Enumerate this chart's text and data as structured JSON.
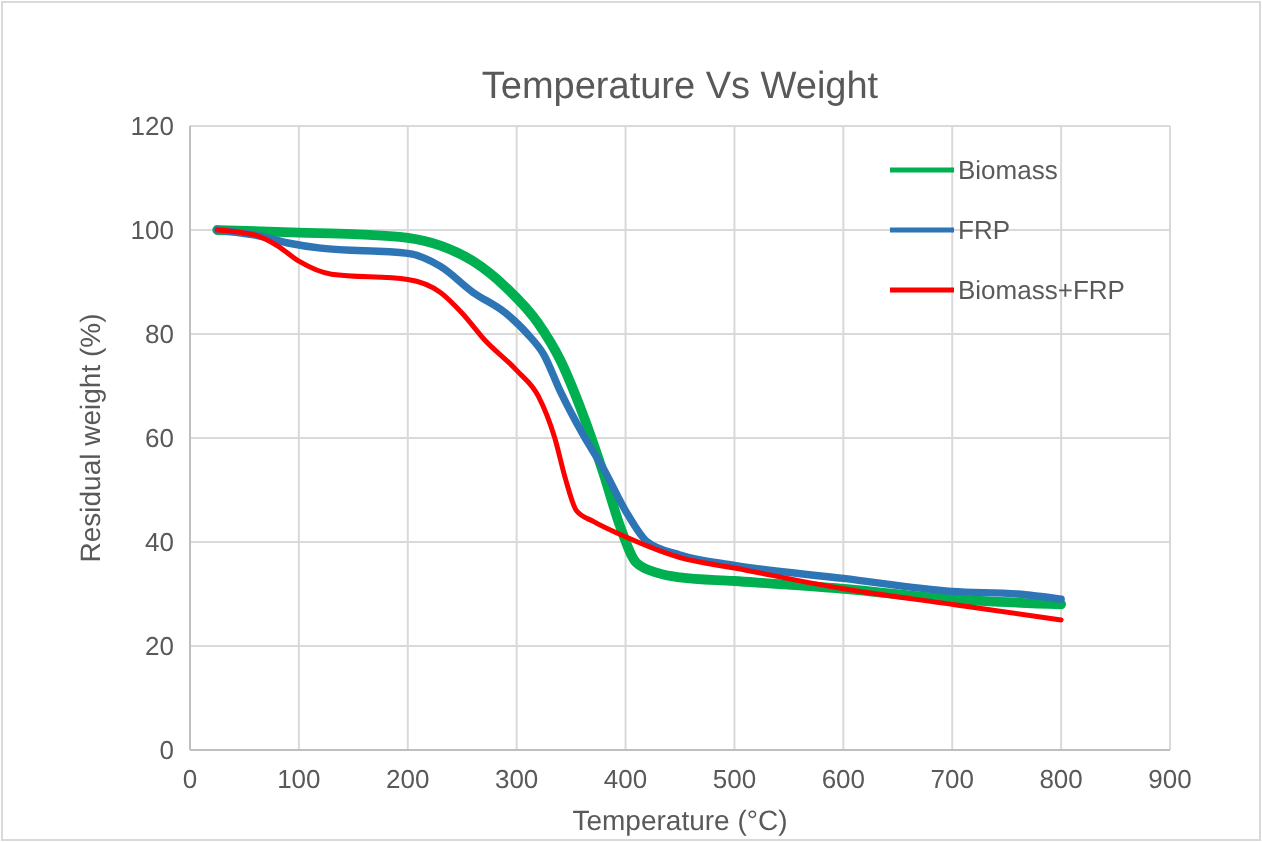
{
  "chart_data": {
    "type": "line",
    "title": "Temperature Vs Weight",
    "xlabel": "Temperature (°C)",
    "ylabel": "Residual weight (%)",
    "xlim": [
      0,
      900
    ],
    "xticks": [
      0,
      100,
      200,
      300,
      400,
      500,
      600,
      700,
      800,
      900
    ],
    "ylim": [
      0,
      120
    ],
    "yticks": [
      0,
      20,
      40,
      60,
      80,
      100,
      120
    ],
    "grid": true,
    "legend": "top right",
    "marker": "none",
    "line_style": "solid",
    "series": [
      {
        "name": "Biomass",
        "color": "#00b050",
        "x": [
          25,
          100,
          150,
          200,
          230,
          260,
          290,
          320,
          340,
          360,
          380,
          395,
          410,
          430,
          450,
          500,
          600,
          700,
          800
        ],
        "values": [
          100,
          99.5,
          99.2,
          98.5,
          97,
          94,
          89,
          82,
          75,
          65,
          53,
          43,
          36,
          34,
          33.2,
          32.5,
          31,
          29,
          28
        ]
      },
      {
        "name": "FRP",
        "color": "#2e75b6",
        "x": [
          25,
          60,
          90,
          120,
          200,
          230,
          260,
          290,
          310,
          325,
          340,
          360,
          380,
          400,
          420,
          450,
          500,
          600,
          700,
          760,
          800
        ],
        "values": [
          100,
          99,
          97.5,
          96.5,
          95.5,
          93,
          88,
          84,
          80,
          76,
          69,
          61,
          54,
          46,
          40,
          37.5,
          35.5,
          33,
          30.5,
          30,
          29
        ]
      },
      {
        "name": "Biomass+FRP",
        "color": "#ff0000",
        "x": [
          25,
          60,
          80,
          100,
          130,
          200,
          230,
          250,
          270,
          300,
          320,
          335,
          345,
          355,
          370,
          400,
          450,
          500,
          600,
          700,
          800
        ],
        "values": [
          100,
          99,
          97,
          94,
          91.5,
          90.5,
          88,
          84,
          79,
          73,
          68,
          60,
          52,
          46,
          44,
          41,
          37,
          35,
          31,
          28,
          25
        ]
      }
    ]
  }
}
